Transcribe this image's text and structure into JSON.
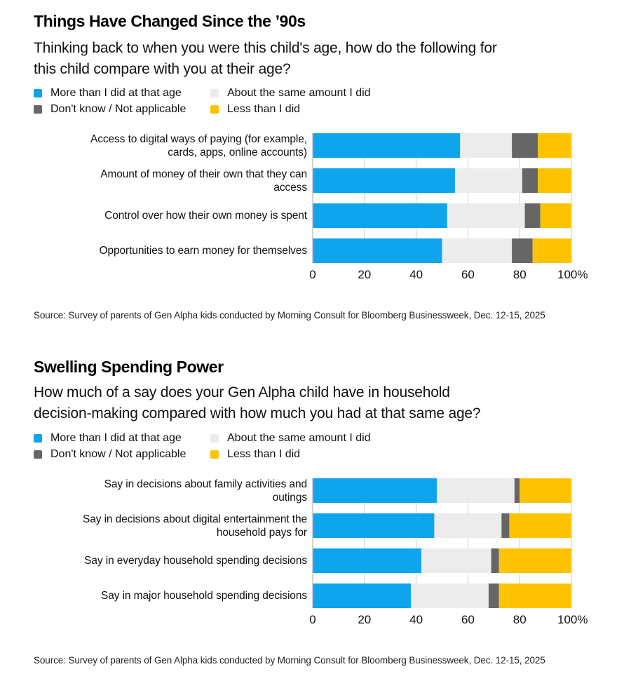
{
  "colors": {
    "more": "#0ea5ec",
    "same": "#ececec",
    "dont_know": "#666666",
    "less": "#fdc300",
    "gridline": "#d9d9d9",
    "axis": "#bbbbbb"
  },
  "legend_labels": {
    "more": "More than I did at that age",
    "same": "About the same amount I did",
    "dont_know": "Don't know / Not applicable",
    "less": "Less than I did"
  },
  "chart_data": [
    {
      "type": "bar",
      "orientation": "horizontal",
      "stacked": true,
      "title": "Things Have Changed Since the ’90s",
      "subtitle_lines": [
        "Thinking back to when you were this child's age, how do the following for",
        "this child compare with you at their age?"
      ],
      "categories": [
        [
          "Access to digital ways of paying (for example,",
          "cards, apps, online accounts)"
        ],
        [
          "Amount of money of their own that they can",
          "access"
        ],
        [
          "Control over how their own money is spent"
        ],
        [
          "Opportunities to earn money for themselves"
        ]
      ],
      "series": [
        {
          "key": "more",
          "name": "More than I did at that age",
          "values": [
            57,
            55,
            52,
            50
          ]
        },
        {
          "key": "same",
          "name": "About the same amount I did",
          "values": [
            20,
            26,
            30,
            27
          ]
        },
        {
          "key": "dont_know",
          "name": "Don't know / Not applicable",
          "values": [
            10,
            6,
            6,
            8
          ]
        },
        {
          "key": "less",
          "name": "Less than I did",
          "values": [
            13,
            13,
            12,
            15
          ]
        }
      ],
      "xlim": [
        0,
        100
      ],
      "xticks": [
        0,
        20,
        40,
        60,
        80,
        100
      ],
      "xtick_labels": [
        "0",
        "20",
        "40",
        "60",
        "80",
        "100%"
      ],
      "xlabel": "",
      "ylabel": "",
      "grid": true,
      "legend_position": "top-left",
      "source": "Source: Survey of parents of Gen Alpha kids conducted by Morning Consult for Bloomberg Businessweek, Dec. 12-15, 2025"
    },
    {
      "type": "bar",
      "orientation": "horizontal",
      "stacked": true,
      "title": "Swelling Spending Power",
      "subtitle_lines": [
        "How much of a say does your Gen Alpha child have in household",
        "decision-making compared with how much you had at that same age?"
      ],
      "categories": [
        [
          "Say in decisions about family activities and",
          "outings"
        ],
        [
          "Say in decisions about digital entertainment the",
          "household pays for"
        ],
        [
          "Say in everyday household spending decisions"
        ],
        [
          "Say in major household spending decisions"
        ]
      ],
      "series": [
        {
          "key": "more",
          "name": "More than I did at that age",
          "values": [
            48,
            47,
            42,
            38
          ]
        },
        {
          "key": "same",
          "name": "About the same amount I did",
          "values": [
            30,
            26,
            27,
            30
          ]
        },
        {
          "key": "dont_know",
          "name": "Don't know / Not applicable",
          "values": [
            2,
            3,
            3,
            4
          ]
        },
        {
          "key": "less",
          "name": "Less than I did",
          "values": [
            20,
            24,
            28,
            28
          ]
        }
      ],
      "xlim": [
        0,
        100
      ],
      "xticks": [
        0,
        20,
        40,
        60,
        80,
        100
      ],
      "xtick_labels": [
        "0",
        "20",
        "40",
        "60",
        "80",
        "100%"
      ],
      "xlabel": "",
      "ylabel": "",
      "grid": true,
      "legend_position": "top-left",
      "source": "Source: Survey of parents of Gen Alpha kids conducted by Morning Consult for Bloomberg Businessweek, Dec. 12-15, 2025"
    }
  ]
}
